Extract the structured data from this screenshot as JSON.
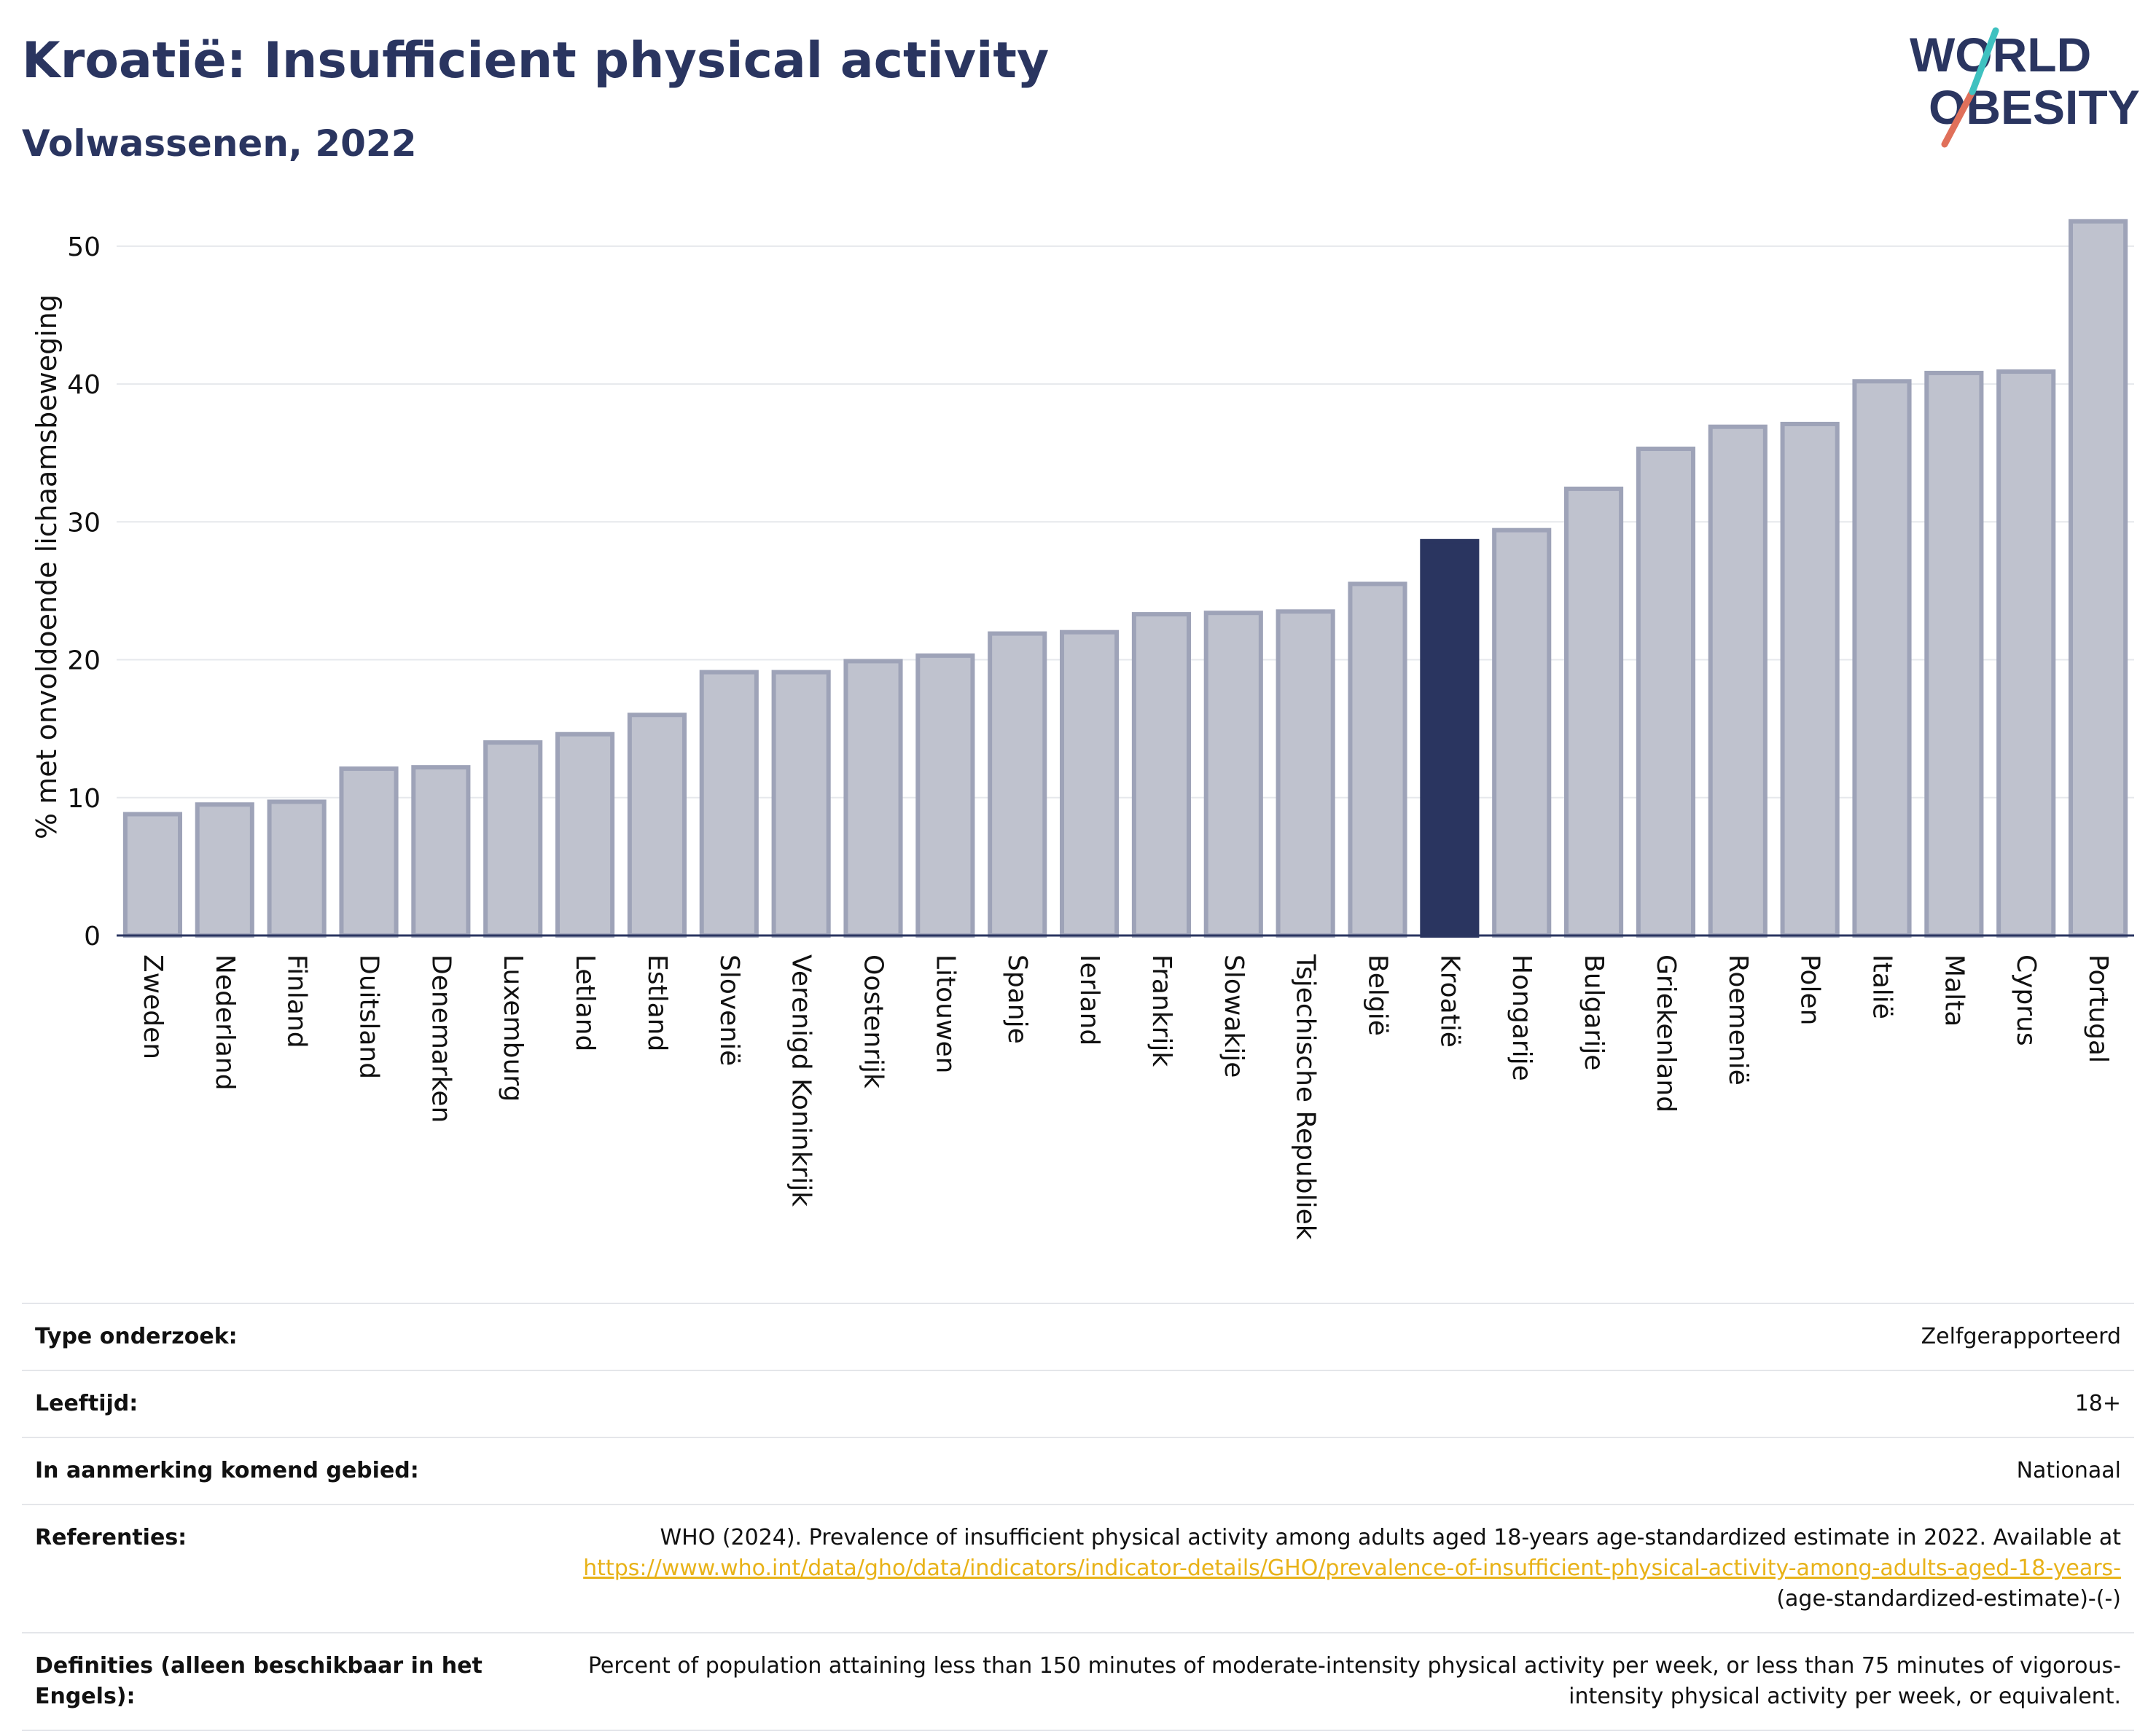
{
  "header": {
    "title": "Kroatië: Insufficient physical activity",
    "subtitle": "Volwassenen, 2022"
  },
  "logo": {
    "line1": "WORLD",
    "line2": "OBESITY",
    "colors": [
      "#2a3560",
      "#e0705a",
      "#3fc1c0"
    ]
  },
  "colors": {
    "bar_default": "#bfc2ce",
    "bar_border": "#9ea3b8",
    "bar_highlight": "#2a3560",
    "grid": "#e6e8ec",
    "axis": "#2a3560",
    "link": "#e8b218"
  },
  "chart_data": {
    "type": "bar",
    "title": "Kroatië: Insufficient physical activity",
    "subtitle": "Volwassenen, 2022",
    "xlabel": "",
    "ylabel": "% met onvoldoende lichaamsbeweging",
    "ylim": [
      0,
      52
    ],
    "yticks": [
      0,
      10,
      20,
      30,
      40,
      50
    ],
    "grid": true,
    "highlight": "Kroatië",
    "categories": [
      "Zweden",
      "Nederland",
      "Finland",
      "Duitsland",
      "Denemarken",
      "Luxemburg",
      "Letland",
      "Estland",
      "Slovenië",
      "Verenigd Koninkrijk",
      "Oostenrijk",
      "Litouwen",
      "Spanje",
      "Ierland",
      "Frankrijk",
      "Slowakije",
      "Tsjechische Republiek",
      "België",
      "Kroatië",
      "Hongarije",
      "Bulgarije",
      "Griekenland",
      "Roemenië",
      "Polen",
      "Italië",
      "Malta",
      "Cyprus",
      "Portugal"
    ],
    "values": [
      8.8,
      9.5,
      9.7,
      12.1,
      12.2,
      14.0,
      14.6,
      16.0,
      19.1,
      19.1,
      19.9,
      20.3,
      21.9,
      22.0,
      23.3,
      23.4,
      23.5,
      25.5,
      28.6,
      29.4,
      32.4,
      35.3,
      36.9,
      37.1,
      40.2,
      40.8,
      40.9,
      51.8
    ]
  },
  "info": {
    "rows": [
      {
        "label": "Type onderzoek:",
        "value": "Zelfgerapporteerd"
      },
      {
        "label": "Leeftijd:",
        "value": "18+"
      },
      {
        "label": "In aanmerking komend gebied:",
        "value": "Nationaal"
      }
    ],
    "references": {
      "label": "Referenties:",
      "text": "WHO (2024). Prevalence of insufficient physical activity among adults aged 18-years age-standardized estimate in 2022. Available at",
      "link": "https://www.who.int/data/gho/data/indicators/indicator-details/GHO/prevalence-of-insufficient-physical-activity-among-adults-aged-18-years-",
      "suffix": "(age-standardized-estimate)-(-)"
    },
    "definitions": {
      "label": "Definities (alleen beschikbaar in het Engels):",
      "value": "Percent of population attaining less than 150 minutes of moderate-intensity physical activity per week, or less than 75 minutes of vigorous-intensity physical activity per week, or equivalent."
    }
  }
}
